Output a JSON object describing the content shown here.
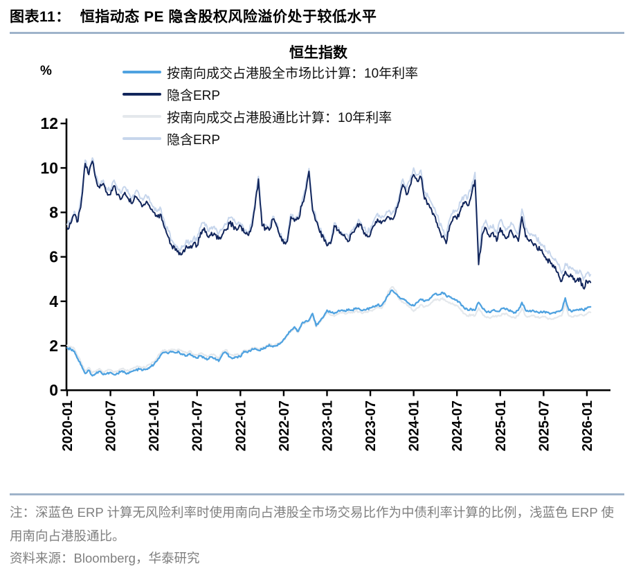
{
  "header": {
    "figure_label": "图表11：",
    "title": "恒指动态 PE 隐含股权风险溢价处于较低水平"
  },
  "footer": {
    "note": "注：深蓝色 ERP 计算无风险利率时使用南向占港股全市场交易比作为中债利率计算的比例，浅蓝色 ERP 使用南向占港股通比。",
    "source": "资料来源：Bloomberg，华泰研究"
  },
  "colors": {
    "rate_full_market": "#4FA2E0",
    "erp_full_market": "#12265C",
    "rate_stock_connect": "#E4E8EC",
    "erp_stock_connect": "#C7D6EC",
    "divider": "#9FB3CA",
    "axis": "#000000",
    "note_text": "#7F7F7F"
  },
  "chart_data": {
    "type": "line",
    "title": "恒生指数",
    "ylabel": "%",
    "ylim": [
      0,
      12
    ],
    "y_ticks": [
      0,
      2,
      4,
      6,
      8,
      10,
      12
    ],
    "x_start": "2020-01",
    "x_interval_months": 0.5,
    "x_tick_every_months": 6,
    "x_tick_labels": [
      "2020-01",
      "2020-07",
      "2021-01",
      "2021-07",
      "2022-01",
      "2022-07",
      "2023-01",
      "2023-07",
      "2024-01",
      "2024-07",
      "2025-01",
      "2025-07",
      "2026-01"
    ],
    "legend_position": "top-left",
    "grid": false,
    "series": [
      {
        "name": "按南向成交占港股全市场比计算：10年利率",
        "color": "#4FA2E0",
        "values": [
          1.9,
          1.85,
          1.75,
          1.4,
          1.1,
          0.75,
          0.9,
          0.65,
          0.75,
          0.85,
          0.7,
          0.75,
          0.8,
          0.7,
          0.75,
          0.85,
          0.8,
          0.75,
          0.85,
          0.9,
          0.95,
          0.9,
          0.95,
          1.05,
          1.15,
          1.35,
          1.6,
          1.7,
          1.65,
          1.72,
          1.68,
          1.72,
          1.6,
          1.55,
          1.65,
          1.5,
          1.45,
          1.55,
          1.45,
          1.4,
          1.5,
          1.45,
          1.3,
          1.6,
          1.7,
          1.5,
          1.45,
          1.5,
          1.5,
          1.75,
          1.7,
          1.8,
          1.88,
          1.8,
          1.85,
          1.9,
          2.05,
          1.95,
          2.0,
          2.1,
          2.3,
          2.5,
          2.7,
          2.85,
          2.65,
          3.0,
          3.1,
          3.15,
          3.45,
          2.9,
          3.1,
          3.3,
          3.6,
          3.5,
          3.45,
          3.55,
          3.6,
          3.55,
          3.65,
          3.6,
          3.7,
          3.65,
          3.6,
          3.65,
          3.7,
          3.75,
          3.85,
          3.8,
          4.0,
          4.3,
          4.5,
          4.35,
          4.2,
          4.1,
          4.0,
          3.85,
          3.8,
          3.95,
          4.1,
          4.0,
          4.05,
          4.2,
          4.35,
          4.3,
          4.4,
          4.25,
          4.2,
          4.1,
          4.05,
          3.9,
          3.7,
          3.6,
          3.65,
          3.6,
          3.95,
          3.7,
          3.55,
          3.5,
          3.6,
          3.55,
          3.6,
          3.7,
          3.65,
          3.55,
          3.5,
          3.6,
          3.95,
          3.6,
          3.55,
          3.6,
          3.55,
          3.5,
          3.55,
          3.5,
          3.45,
          3.5,
          3.55,
          3.6,
          4.15,
          3.6,
          3.55,
          3.6,
          3.65,
          3.6,
          3.7,
          3.75
        ]
      },
      {
        "name": "隐含ERP",
        "color": "#12265C",
        "values": [
          7.3,
          7.5,
          7.9,
          7.6,
          8.6,
          10.2,
          9.7,
          10.3,
          9.5,
          9.1,
          9.3,
          8.9,
          8.8,
          9.2,
          8.8,
          8.6,
          8.9,
          8.6,
          8.4,
          8.7,
          8.5,
          8.3,
          8.5,
          8.2,
          8.0,
          7.8,
          7.9,
          7.3,
          6.9,
          6.5,
          6.3,
          6.1,
          6.2,
          6.5,
          6.4,
          6.6,
          6.5,
          7.1,
          7.3,
          6.9,
          7.1,
          7.0,
          6.8,
          7.0,
          7.2,
          7.5,
          7.4,
          7.2,
          7.4,
          7.1,
          7.0,
          7.3,
          8.2,
          9.5,
          7.4,
          7.3,
          7.2,
          7.7,
          7.4,
          6.9,
          6.6,
          6.7,
          7.8,
          7.6,
          7.7,
          8.3,
          8.9,
          9.85,
          8.1,
          7.6,
          7.1,
          6.9,
          6.5,
          6.6,
          7.4,
          7.2,
          7.0,
          6.9,
          6.7,
          7.1,
          7.3,
          7.5,
          7.2,
          7.0,
          7.0,
          7.4,
          7.7,
          7.5,
          7.6,
          7.8,
          7.7,
          8.0,
          8.5,
          9.25,
          8.8,
          9.2,
          9.7,
          9.4,
          9.6,
          8.6,
          8.4,
          8.1,
          7.8,
          7.3,
          6.9,
          6.6,
          7.4,
          7.8,
          7.7,
          8.1,
          8.4,
          8.3,
          8.8,
          9.45,
          5.65,
          7.0,
          7.3,
          6.9,
          7.1,
          6.7,
          7.3,
          7.0,
          6.9,
          7.2,
          6.9,
          6.7,
          7.8,
          6.9,
          6.7,
          6.6,
          6.5,
          6.3,
          6.1,
          5.9,
          5.7,
          5.5,
          5.3,
          4.9,
          5.35,
          5.1,
          5.15,
          4.9,
          5.05,
          4.6,
          4.9,
          4.85
        ]
      },
      {
        "name": "按南向成交占港股通比计算：10年利率",
        "color": "#E4E8EC",
        "values": [
          2.02,
          1.97,
          1.87,
          1.52,
          1.22,
          0.87,
          1.02,
          0.77,
          0.87,
          0.97,
          0.82,
          0.87,
          0.92,
          0.82,
          0.87,
          0.97,
          0.92,
          0.87,
          0.97,
          1.02,
          1.07,
          1.02,
          1.07,
          1.17,
          1.27,
          1.47,
          1.72,
          1.82,
          1.77,
          1.84,
          1.8,
          1.84,
          1.72,
          1.67,
          1.77,
          1.62,
          1.57,
          1.67,
          1.57,
          1.52,
          1.62,
          1.57,
          1.42,
          1.72,
          1.82,
          1.62,
          1.57,
          1.62,
          1.55,
          1.8,
          1.75,
          1.85,
          1.93,
          1.85,
          1.9,
          1.95,
          2.1,
          2.0,
          2.05,
          2.15,
          2.25,
          2.45,
          2.65,
          2.8,
          2.6,
          2.95,
          3.05,
          3.1,
          3.4,
          2.85,
          3.05,
          3.25,
          3.48,
          3.38,
          3.33,
          3.43,
          3.48,
          3.43,
          3.53,
          3.48,
          3.58,
          3.53,
          3.48,
          3.53,
          3.58,
          3.63,
          3.73,
          3.68,
          3.88,
          4.45,
          4.65,
          4.5,
          4.08,
          3.98,
          3.88,
          3.73,
          3.55,
          3.7,
          3.85,
          3.75,
          3.8,
          3.95,
          4.1,
          4.05,
          4.15,
          4.0,
          3.95,
          3.85,
          3.8,
          3.65,
          3.45,
          3.35,
          3.4,
          3.35,
          3.7,
          3.45,
          3.3,
          3.25,
          3.35,
          3.3,
          3.35,
          3.45,
          3.4,
          3.3,
          3.25,
          3.35,
          3.7,
          3.35,
          3.3,
          3.35,
          3.3,
          3.25,
          3.3,
          3.25,
          3.2,
          3.25,
          3.3,
          3.35,
          3.9,
          3.35,
          3.3,
          3.35,
          3.4,
          3.35,
          3.45,
          3.5
        ]
      },
      {
        "name": "隐含ERP",
        "color": "#C7D6EC",
        "values": [
          7.45,
          7.65,
          8.05,
          7.75,
          8.75,
          10.35,
          9.85,
          10.45,
          9.65,
          9.25,
          9.45,
          9.05,
          9.05,
          9.45,
          9.05,
          8.85,
          9.15,
          8.85,
          8.65,
          8.95,
          8.75,
          8.55,
          8.75,
          8.45,
          8.25,
          8.05,
          8.15,
          7.55,
          7.15,
          6.75,
          6.55,
          6.35,
          6.45,
          6.75,
          6.65,
          6.85,
          6.75,
          7.35,
          7.55,
          7.15,
          7.35,
          7.25,
          7.05,
          7.25,
          7.45,
          7.75,
          7.65,
          7.45,
          7.52,
          7.22,
          7.12,
          7.42,
          8.32,
          9.62,
          7.52,
          7.42,
          7.32,
          7.82,
          7.52,
          7.02,
          6.72,
          6.82,
          7.92,
          7.72,
          7.82,
          8.42,
          9.02,
          9.97,
          8.22,
          7.72,
          7.22,
          7.02,
          6.62,
          6.72,
          7.52,
          7.32,
          7.12,
          7.02,
          6.82,
          7.22,
          7.42,
          7.62,
          7.32,
          7.12,
          7.25,
          7.65,
          7.95,
          7.75,
          7.85,
          8.05,
          7.95,
          8.25,
          8.75,
          9.5,
          9.05,
          9.45,
          10.0,
          9.7,
          9.9,
          8.9,
          8.7,
          8.4,
          8.1,
          7.6,
          7.2,
          6.9,
          7.7,
          8.1,
          8.05,
          8.45,
          8.75,
          8.65,
          9.15,
          9.8,
          6.0,
          7.35,
          7.65,
          7.25,
          7.45,
          7.05,
          7.65,
          7.35,
          7.25,
          7.55,
          7.25,
          7.05,
          8.15,
          7.25,
          7.05,
          6.95,
          6.85,
          6.65,
          6.45,
          6.25,
          6.05,
          5.85,
          5.65,
          5.25,
          5.7,
          5.45,
          5.5,
          5.25,
          5.4,
          4.95,
          5.25,
          5.2
        ]
      }
    ]
  }
}
